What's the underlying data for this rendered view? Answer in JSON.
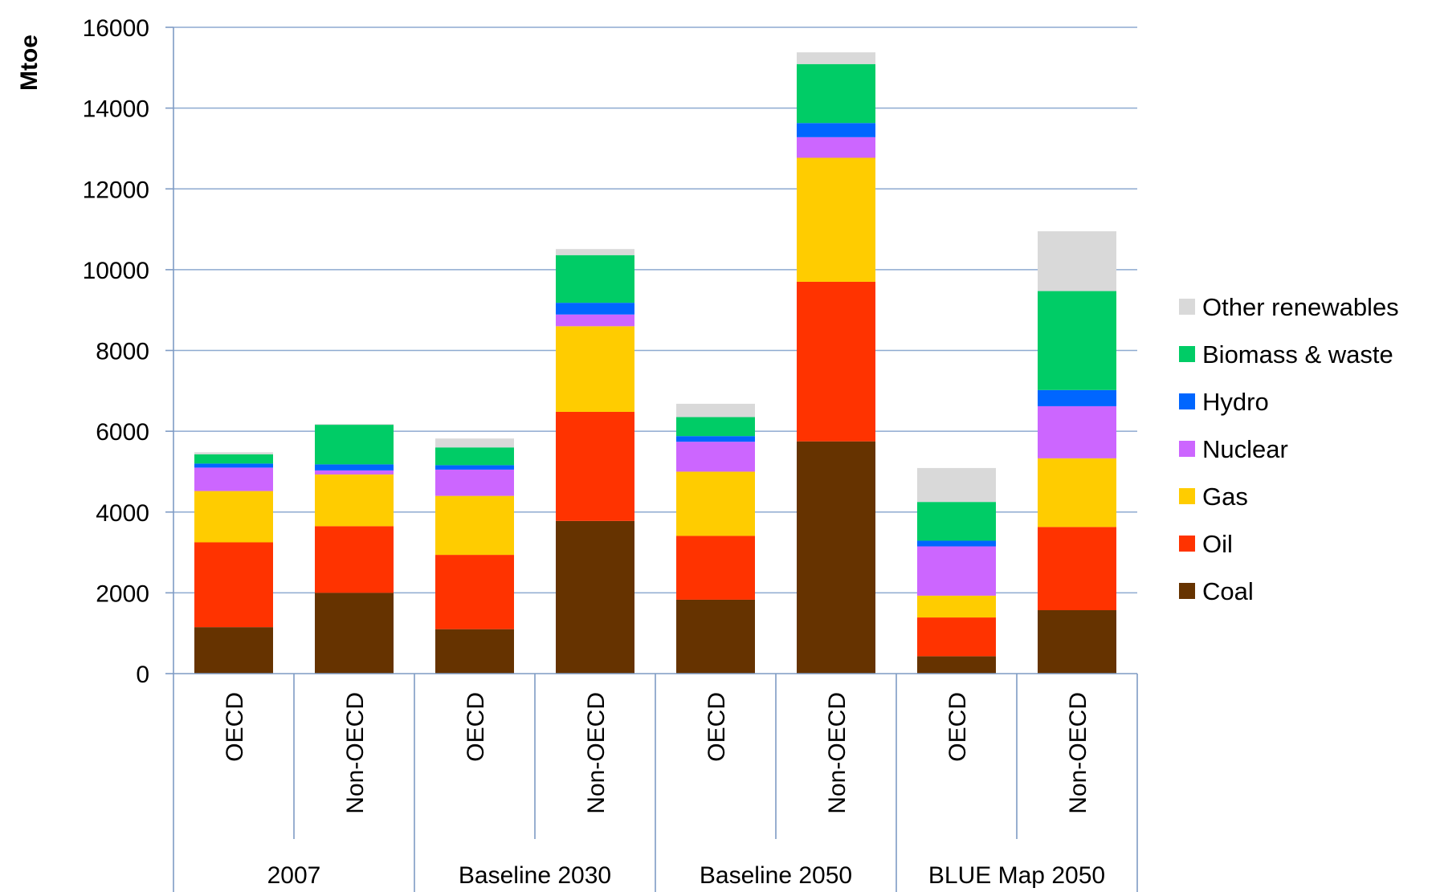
{
  "chart_data": {
    "type": "bar",
    "stacked": true,
    "ylabel": "Mtoe",
    "ylim": [
      0,
      16000
    ],
    "yticks": [
      0,
      2000,
      4000,
      6000,
      8000,
      10000,
      12000,
      14000,
      16000
    ],
    "grid": true,
    "legend_position": "right",
    "groups": [
      {
        "label": "2007",
        "categories": [
          "OECD",
          "Non-OECD"
        ]
      },
      {
        "label": "Baseline 2030",
        "categories": [
          "OECD",
          "Non-OECD"
        ]
      },
      {
        "label": "Baseline 2050",
        "categories": [
          "OECD",
          "Non-OECD"
        ]
      },
      {
        "label": "BLUE Map 2050",
        "categories": [
          "OECD",
          "Non-OECD"
        ]
      }
    ],
    "categories": [
      "OECD",
      "Non-OECD",
      "OECD",
      "Non-OECD",
      "OECD",
      "Non-OECD",
      "OECD",
      "Non-OECD"
    ],
    "series": [
      {
        "name": "Coal",
        "color": "#663300",
        "values": [
          1150,
          2000,
          1100,
          3780,
          1830,
          5750,
          430,
          1570
        ]
      },
      {
        "name": "Oil",
        "color": "#ff3300",
        "values": [
          2100,
          1650,
          1840,
          2700,
          1580,
          3950,
          960,
          2060
        ]
      },
      {
        "name": "Gas",
        "color": "#ffcc00",
        "values": [
          1270,
          1280,
          1460,
          2120,
          1590,
          3070,
          540,
          1700
        ]
      },
      {
        "name": "Nuclear",
        "color": "#cc66ff",
        "values": [
          580,
          100,
          650,
          290,
          740,
          510,
          1220,
          1290
        ]
      },
      {
        "name": "Hydro",
        "color": "#0066ff",
        "values": [
          100,
          150,
          110,
          290,
          140,
          350,
          140,
          400
        ]
      },
      {
        "name": "Biomass & waste",
        "color": "#00cc66",
        "values": [
          230,
          980,
          440,
          1180,
          470,
          1460,
          960,
          2450
        ]
      },
      {
        "name": "Other renewables",
        "color": "#d9d9d9",
        "values": [
          50,
          20,
          220,
          150,
          330,
          290,
          840,
          1480
        ]
      }
    ],
    "legend_order": [
      "Other renewables",
      "Biomass & waste",
      "Hydro",
      "Nuclear",
      "Gas",
      "Oil",
      "Coal"
    ]
  }
}
